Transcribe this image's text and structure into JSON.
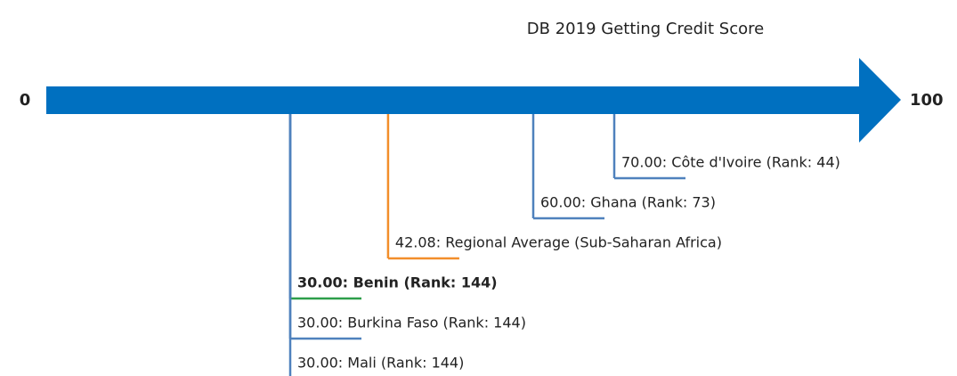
{
  "chart_data": {
    "type": "numberline",
    "title": "DB 2019 Getting Credit Score",
    "xlim": [
      0,
      100
    ],
    "xticks": [
      0,
      100
    ],
    "axis_color": "#0070c0",
    "values": [
      70,
      60,
      42.08,
      30,
      30,
      30
    ],
    "value_labels": [
      "70.00: Côte d'Ivoire (Rank: 44)",
      "60.00: Ghana (Rank: 73)",
      "42.08: Regional Average (Sub-Saharan Africa)",
      "30.00: Benin (Rank: 144)",
      "30.00: Burkina Faso (Rank: 144)",
      "30.00: Mali (Rank: 144)"
    ],
    "colors": [
      "#4f81bd",
      "#4f81bd",
      "#f28e2b",
      "#4f81bd",
      "#4f81bd",
      "#4f81bd"
    ],
    "underline_colors": [
      "#4f81bd",
      "#4f81bd",
      "#f28e2b",
      "#2e9e4a",
      "#4f81bd",
      null
    ],
    "bold": [
      false,
      false,
      false,
      true,
      false,
      false
    ]
  }
}
